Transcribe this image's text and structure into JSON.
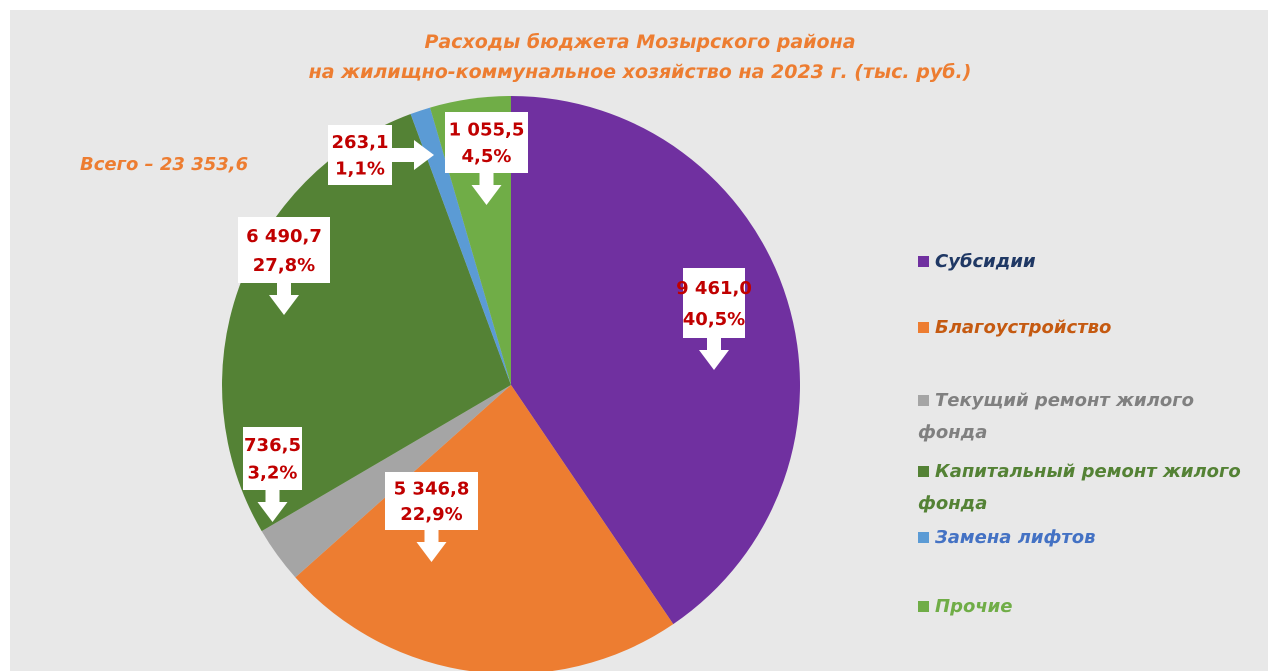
{
  "chart_data": {
    "type": "pie",
    "title": [
      "Расходы бюджета Мозырского района",
      "на жилищно-коммунальное хозяйство  на 2023 г. (тыс. руб.)"
    ],
    "annotation": "Всего – 23 353,6",
    "categories": [
      "Субсидии",
      "Благоустройство",
      "Текущий ремонт жилого фонда",
      "Капитальный ремонт жилого фонда",
      "Замена лифтов",
      "Прочие"
    ],
    "values": [
      9461.0,
      5346.8,
      736.5,
      6490.7,
      263.1,
      1055.5
    ],
    "value_labels": [
      "9 461,0",
      "5 346,8",
      "736,5",
      "6 490,7",
      "263,1",
      "1 055,5"
    ],
    "shares": [
      40.5,
      22.9,
      3.2,
      27.8,
      1.1,
      4.5
    ],
    "share_labels": [
      "40,5%",
      "22,9%",
      "3,2%",
      "27,8%",
      "1,1%",
      "4,5%"
    ],
    "colors": [
      "#7030a0",
      "#ed7d31",
      "#a5a5a5",
      "#548235",
      "#5b9bd5",
      "#70ad47"
    ],
    "legend_text_colors": [
      "#1f3864",
      "#c55a11",
      "#808080",
      "#548235",
      "#4472c4",
      "#70ad47"
    ],
    "legend": "right"
  }
}
